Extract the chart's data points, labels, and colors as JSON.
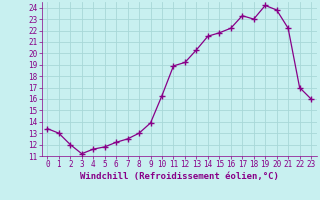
{
  "x": [
    0,
    1,
    2,
    3,
    4,
    5,
    6,
    7,
    8,
    9,
    10,
    11,
    12,
    13,
    14,
    15,
    16,
    17,
    18,
    19,
    20,
    21,
    22,
    23
  ],
  "y": [
    13.4,
    13.0,
    12.0,
    11.2,
    11.6,
    11.8,
    12.2,
    12.5,
    13.0,
    13.9,
    16.3,
    18.9,
    19.2,
    20.3,
    21.5,
    21.8,
    22.2,
    23.3,
    23.0,
    24.2,
    23.8,
    22.2,
    17.0,
    16.0
  ],
  "xlabel": "Windchill (Refroidissement éolien,°C)",
  "xlim": [
    -0.5,
    23.5
  ],
  "ylim": [
    11,
    24.5
  ],
  "yticks": [
    11,
    12,
    13,
    14,
    15,
    16,
    17,
    18,
    19,
    20,
    21,
    22,
    23,
    24
  ],
  "xticks": [
    0,
    1,
    2,
    3,
    4,
    5,
    6,
    7,
    8,
    9,
    10,
    11,
    12,
    13,
    14,
    15,
    16,
    17,
    18,
    19,
    20,
    21,
    22,
    23
  ],
  "line_color": "#880088",
  "marker": "+",
  "bg_color": "#c8f0f0",
  "grid_color": "#a8d8d8",
  "tick_label_color": "#880088",
  "xlabel_color": "#880088",
  "tick_fontsize": 5.5,
  "xlabel_fontsize": 6.5,
  "marker_size": 4,
  "line_width": 0.9
}
